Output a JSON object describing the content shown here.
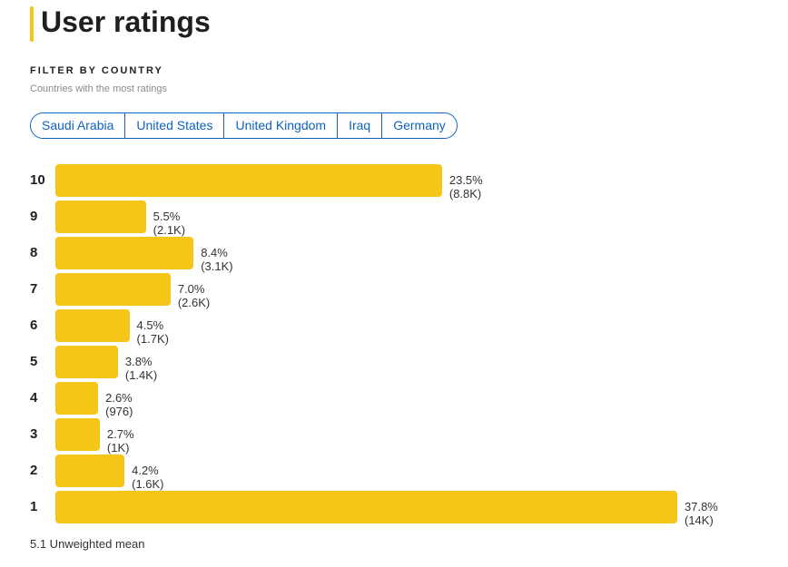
{
  "title": "User ratings",
  "filter": {
    "label": "FILTER BY COUNTRY",
    "subtitle": "Countries with the most ratings",
    "countries": [
      "Saudi Arabia",
      "United States",
      "United Kingdom",
      "Iraq",
      "Germany"
    ]
  },
  "chart_data": {
    "type": "bar",
    "orientation": "horizontal",
    "categories": [
      "10",
      "9",
      "8",
      "7",
      "6",
      "5",
      "4",
      "3",
      "2",
      "1"
    ],
    "values": [
      23.5,
      5.5,
      8.4,
      7.0,
      4.5,
      3.8,
      2.6,
      2.7,
      4.2,
      37.8
    ],
    "labels": [
      "23.5% (8.8K)",
      "5.5% (2.1K)",
      "8.4% (3.1K)",
      "7.0% (2.6K)",
      "4.5% (1.7K)",
      "3.8% (1.4K)",
      "2.6% (976)",
      "2.7% (1K)",
      "4.2% (1.6K)",
      "37.8% (14K)"
    ],
    "color": "#f5c518",
    "xlabel": "",
    "ylabel": ""
  },
  "mean": "5.1 Unweighted mean"
}
